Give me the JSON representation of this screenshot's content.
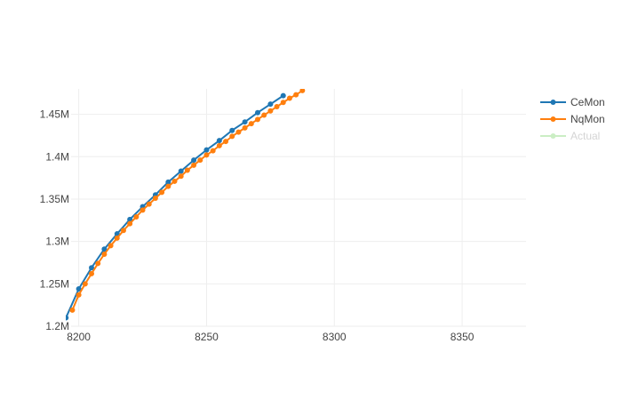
{
  "chart_data": {
    "type": "line",
    "title": "",
    "xlabel": "",
    "ylabel": "",
    "xlim": [
      8197,
      8375
    ],
    "ylim": [
      1.2,
      1.48
    ],
    "x_ticks": [
      8200,
      8250,
      8300,
      8350
    ],
    "x_tick_labels": [
      "8200",
      "8250",
      "8300",
      "8350"
    ],
    "y_ticks": [
      1.2,
      1.25,
      1.3,
      1.35,
      1.4,
      1.45
    ],
    "y_tick_labels": [
      "1.2M",
      "1.25M",
      "1.3M",
      "1.35M",
      "1.4M",
      "1.45M"
    ],
    "grid": true,
    "legend_placement": "top-right",
    "series": [
      {
        "name": "CeMon",
        "color": "#1f77b4",
        "visible": true,
        "x_start": 8195,
        "x_step": 5,
        "values": [
          1.21,
          1.244,
          1.269,
          1.291,
          1.309,
          1.326,
          1.341,
          1.355,
          1.37,
          1.383,
          1.396,
          1.408,
          1.419,
          1.431,
          1.441,
          1.452,
          1.462,
          1.472
        ]
      },
      {
        "name": "NqMon",
        "color": "#ff7f0e",
        "visible": true,
        "x_start": 8197.5,
        "x_step": 2.5,
        "values": [
          1.219,
          1.237,
          1.25,
          1.262,
          1.274,
          1.285,
          1.295,
          1.304,
          1.313,
          1.321,
          1.329,
          1.337,
          1.344,
          1.351,
          1.358,
          1.365,
          1.371,
          1.377,
          1.384,
          1.39,
          1.396,
          1.402,
          1.407,
          1.413,
          1.418,
          1.424,
          1.429,
          1.434,
          1.439,
          1.444,
          1.449,
          1.454,
          1.459,
          1.464,
          1.469,
          1.473,
          1.478
        ]
      },
      {
        "name": "Actual",
        "color": "#98df8a",
        "visible": false,
        "values": []
      }
    ]
  }
}
